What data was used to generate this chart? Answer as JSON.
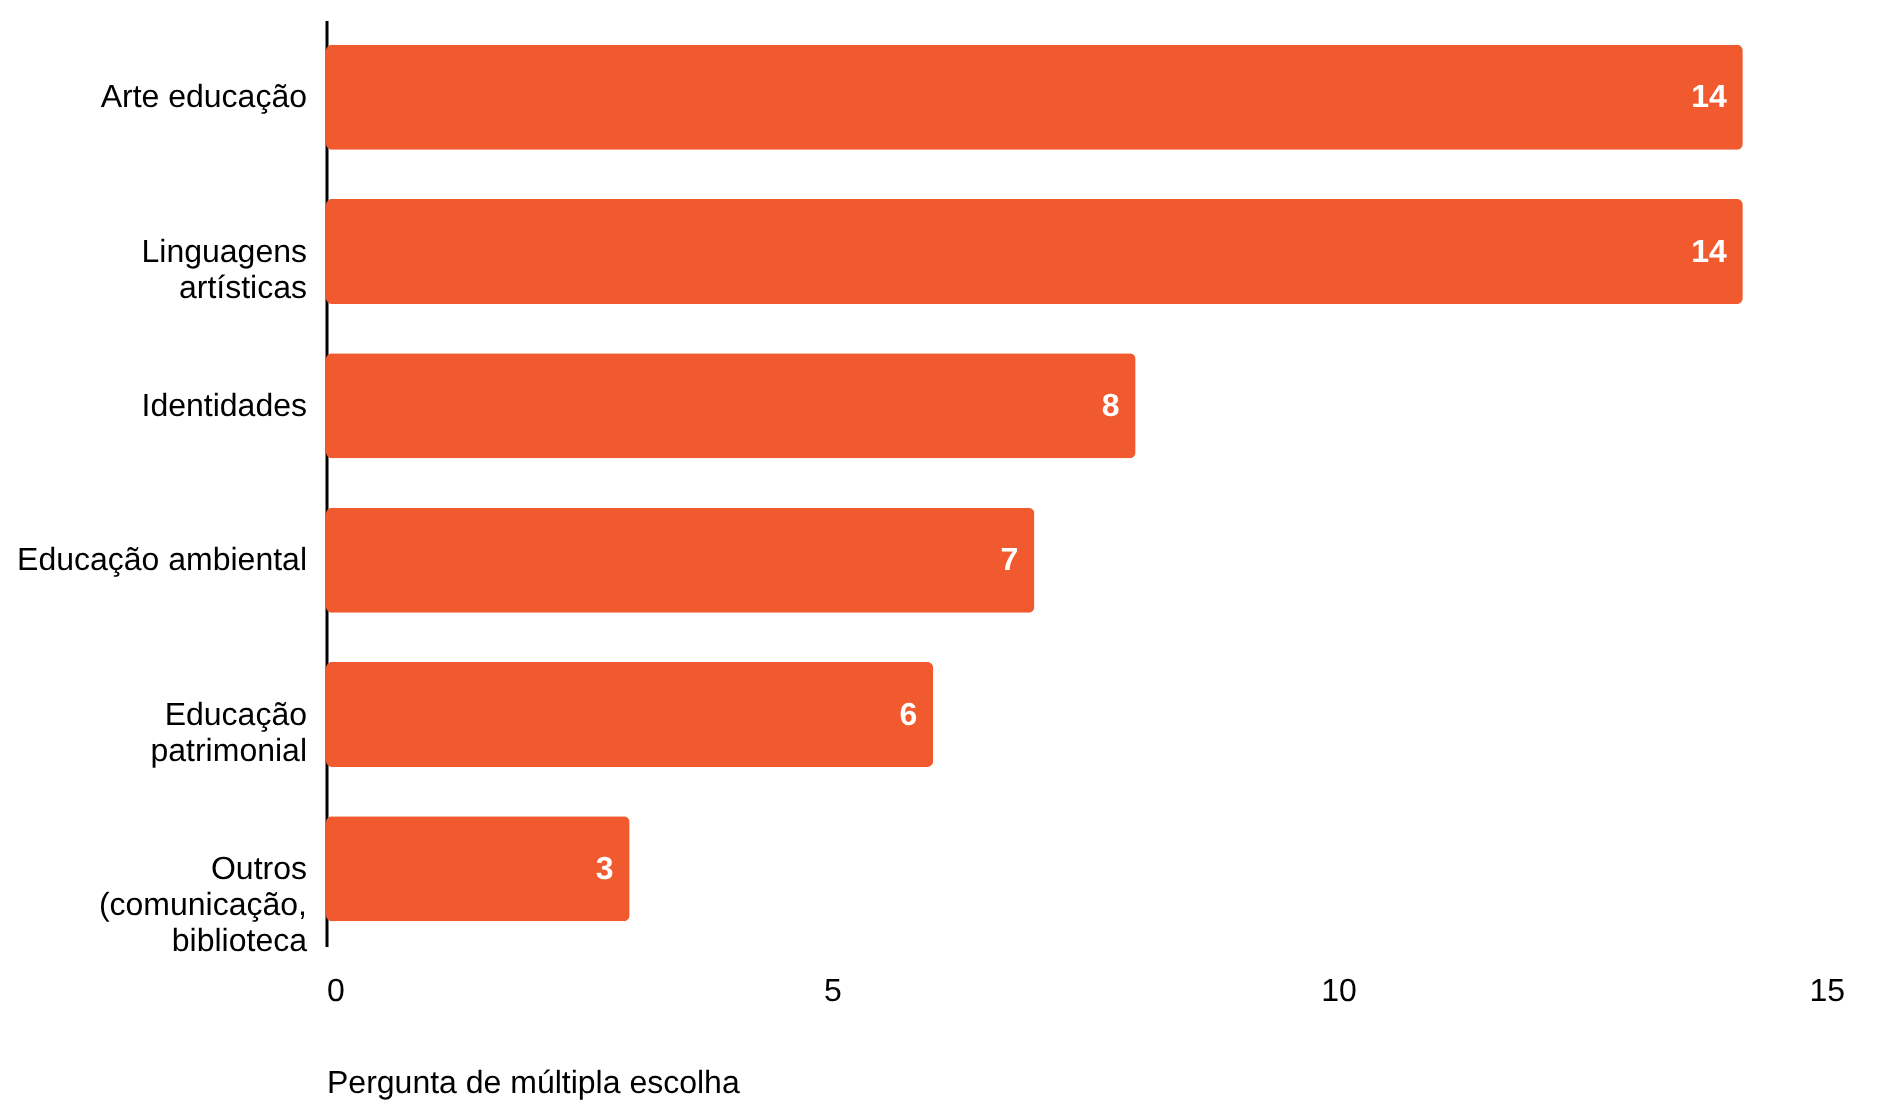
{
  "chart_data": {
    "type": "bar",
    "orientation": "horizontal",
    "categories": [
      "Arte educação",
      "Linguagens\nartísticas",
      "Identidades",
      "Educação ambiental",
      "Educação\npatrimonial",
      "Outros\n(comunicação,\nbiblioteca"
    ],
    "values": [
      14,
      14,
      8,
      7,
      6,
      3
    ],
    "color": "#f05a2e",
    "xlim": [
      0,
      15
    ],
    "xticks": [
      0,
      5,
      10,
      15
    ],
    "xlabel": "Pergunta de múltipla escolha",
    "data_labels": true,
    "grid": false
  }
}
